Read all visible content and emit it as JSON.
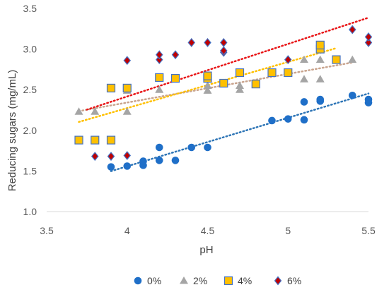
{
  "chart_data": {
    "type": "scatter",
    "xlabel": "pH",
    "ylabel": "Reducing sugars (mg/mL)",
    "xlim": [
      3.5,
      5.5
    ],
    "ylim": [
      1.0,
      3.5
    ],
    "xticks": [
      "3.5",
      "4",
      "4.5",
      "5",
      "5.5"
    ],
    "yticks": [
      "1.0",
      "1.5",
      "2.0",
      "2.5",
      "3.0",
      "3.5"
    ],
    "grid": false,
    "legend_position": "bottom",
    "series": [
      {
        "name": "0%",
        "marker": "circle",
        "color": "#1f6fc8",
        "trendline_color": "#2e75b6",
        "trendline_x": [
          3.9,
          5.5
        ],
        "x": [
          3.9,
          4.0,
          4.1,
          4.1,
          4.2,
          4.2,
          4.3,
          4.4,
          4.5,
          4.9,
          5.0,
          5.1,
          5.1,
          5.2,
          5.2,
          5.4,
          5.5,
          5.5
        ],
        "y": [
          1.55,
          1.56,
          1.57,
          1.62,
          1.63,
          1.79,
          1.63,
          1.79,
          1.79,
          2.12,
          2.14,
          2.13,
          2.35,
          2.36,
          2.38,
          2.43,
          2.34,
          2.38
        ]
      },
      {
        "name": "2%",
        "marker": "triangle",
        "color": "#a5a5a5",
        "trendline_color": "#c9a48e",
        "trendline_x": [
          3.7,
          5.4
        ],
        "x": [
          3.7,
          3.8,
          4.0,
          4.0,
          4.2,
          4.5,
          4.5,
          4.7,
          4.7,
          5.1,
          5.1,
          5.2,
          5.2,
          5.4
        ],
        "y": [
          2.23,
          2.23,
          2.23,
          2.49,
          2.5,
          2.49,
          2.55,
          2.5,
          2.55,
          2.63,
          2.87,
          2.63,
          2.87,
          2.87
        ]
      },
      {
        "name": "4%",
        "marker": "square",
        "color": "#ffc000",
        "stroke": "#4472c4",
        "trendline_color": "#ffc000",
        "trendline_x": [
          3.7,
          5.3
        ],
        "x": [
          3.7,
          3.8,
          3.9,
          3.9,
          4.0,
          4.2,
          4.3,
          4.5,
          4.5,
          4.6,
          4.7,
          4.8,
          4.9,
          5.0,
          5.2,
          5.2,
          5.3
        ],
        "y": [
          1.88,
          1.88,
          1.88,
          2.52,
          2.52,
          2.65,
          2.64,
          2.64,
          2.67,
          2.58,
          2.71,
          2.57,
          2.71,
          2.71,
          3.0,
          3.05,
          2.87
        ]
      },
      {
        "name": "6%",
        "marker": "diamond",
        "color": "#c00000",
        "stroke": "#4472c4",
        "trendline_color": "#e81416",
        "trendline_x": [
          3.75,
          5.5
        ],
        "x": [
          3.8,
          3.9,
          4.0,
          4.0,
          4.2,
          4.2,
          4.3,
          4.4,
          4.5,
          4.6,
          4.6,
          4.6,
          5.0,
          5.4,
          5.5,
          5.5
        ],
        "y": [
          1.68,
          1.68,
          1.69,
          2.86,
          2.87,
          2.93,
          2.93,
          3.08,
          3.08,
          2.96,
          2.98,
          3.08,
          2.87,
          3.24,
          3.08,
          3.15
        ]
      }
    ]
  }
}
